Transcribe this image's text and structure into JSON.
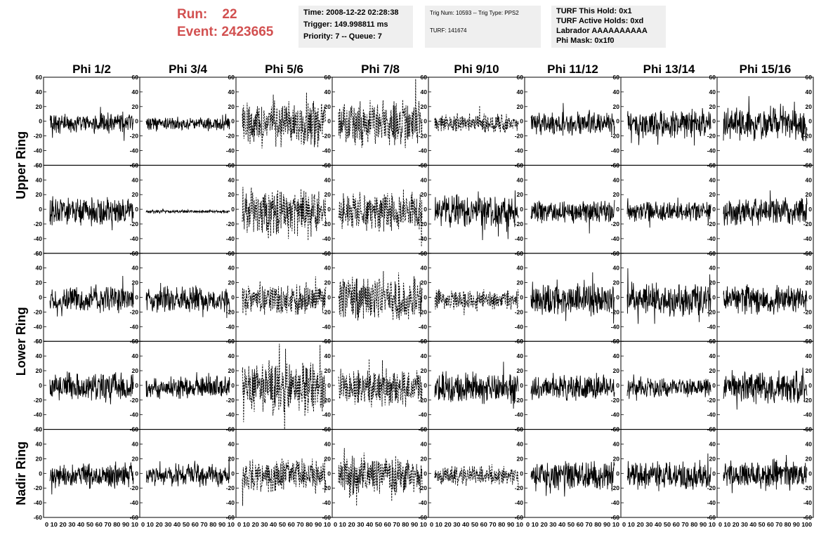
{
  "header": {
    "run_label": "Run:",
    "run_value": "22",
    "event_label": "Event:",
    "event_value": "2423665",
    "accent_color": "#d25050"
  },
  "info_boxes": {
    "time": {
      "line1": "Time: 2008-12-22 02:28:38",
      "line2": "Trigger: 149.998811 ms",
      "line3": "Priority: 7 -- Queue: 7"
    },
    "trig": {
      "line1": "Trig Num: 10593 -- Trig Type: PPS2",
      "line2": "TURF: 141674"
    },
    "turf": {
      "line1": "TURF This Hold: 0x1",
      "line2": "TURF Active Holds: 0xd",
      "line3": "Labrador AAAAAAAAAA",
      "line4": "Phi Mask: 0x1f0"
    }
  },
  "chart_data": {
    "type": "line",
    "columns": [
      "Phi 1/2",
      "Phi 3/4",
      "Phi 5/6",
      "Phi 7/8",
      "Phi 9/10",
      "Phi 11/12",
      "Phi 13/14",
      "Phi 15/16"
    ],
    "ring_labels": [
      "Upper Ring",
      "Lower Ring",
      "Nadir Ring"
    ],
    "rows": 5,
    "ylim": [
      -60,
      60
    ],
    "xlim": [
      0,
      100
    ],
    "y_ticks": [
      -60,
      -40,
      -20,
      0,
      20,
      40,
      60
    ],
    "x_ticks": [
      0,
      10,
      20,
      30,
      40,
      50,
      60,
      70,
      80,
      90,
      100
    ],
    "bottom_x_labels": [
      "0 10 20 30 40 50 60 70 80 90 10",
      "0 10 20 30 40 50 60 70 80 90 10",
      "0 10 20 30 40 50 60 70 80 90 10",
      "0 10 20 30 40 50 60 70 80 90 10",
      "0 10 20 30 40 50 60 70 80 90 10",
      "0 10 20 30 40 50 60 70 80 90 10",
      "0 10 20 30 40 50 60 70 80 90 10",
      "0 10 20 30 40 50 60 70 80 90 100"
    ],
    "panels": [
      [
        {
          "amp": 12,
          "dash": false
        },
        {
          "amp": 8,
          "dash": false
        },
        {
          "amp": 26,
          "dash": true
        },
        {
          "amp": 28,
          "dash": true
        },
        {
          "amp": 12,
          "dash": true
        },
        {
          "amp": 14,
          "dash": false
        },
        {
          "amp": 18,
          "dash": false
        },
        {
          "amp": 20,
          "dash": false
        }
      ],
      [
        {
          "amp": 18,
          "dash": false
        },
        {
          "amp": 2,
          "dash": false
        },
        {
          "amp": 30,
          "dash": true
        },
        {
          "amp": 24,
          "dash": true
        },
        {
          "amp": 20,
          "dash": false
        },
        {
          "amp": 14,
          "dash": false
        },
        {
          "amp": 12,
          "dash": false
        },
        {
          "amp": 18,
          "dash": false
        }
      ],
      [
        {
          "amp": 16,
          "dash": false
        },
        {
          "amp": 16,
          "dash": false
        },
        {
          "amp": 20,
          "dash": true
        },
        {
          "amp": 28,
          "dash": true
        },
        {
          "amp": 12,
          "dash": true
        },
        {
          "amp": 20,
          "dash": false
        },
        {
          "amp": 20,
          "dash": false
        },
        {
          "amp": 18,
          "dash": false
        }
      ],
      [
        {
          "amp": 18,
          "dash": false
        },
        {
          "amp": 14,
          "dash": false
        },
        {
          "amp": 32,
          "dash": true
        },
        {
          "amp": 22,
          "dash": true
        },
        {
          "amp": 20,
          "dash": false
        },
        {
          "amp": 16,
          "dash": false
        },
        {
          "amp": 12,
          "dash": false
        },
        {
          "amp": 20,
          "dash": false
        }
      ],
      [
        {
          "amp": 16,
          "dash": false
        },
        {
          "amp": 14,
          "dash": false
        },
        {
          "amp": 20,
          "dash": true
        },
        {
          "amp": 24,
          "dash": true
        },
        {
          "amp": 12,
          "dash": true
        },
        {
          "amp": 18,
          "dash": false
        },
        {
          "amp": 18,
          "dash": false
        },
        {
          "amp": 18,
          "dash": false
        }
      ]
    ]
  }
}
